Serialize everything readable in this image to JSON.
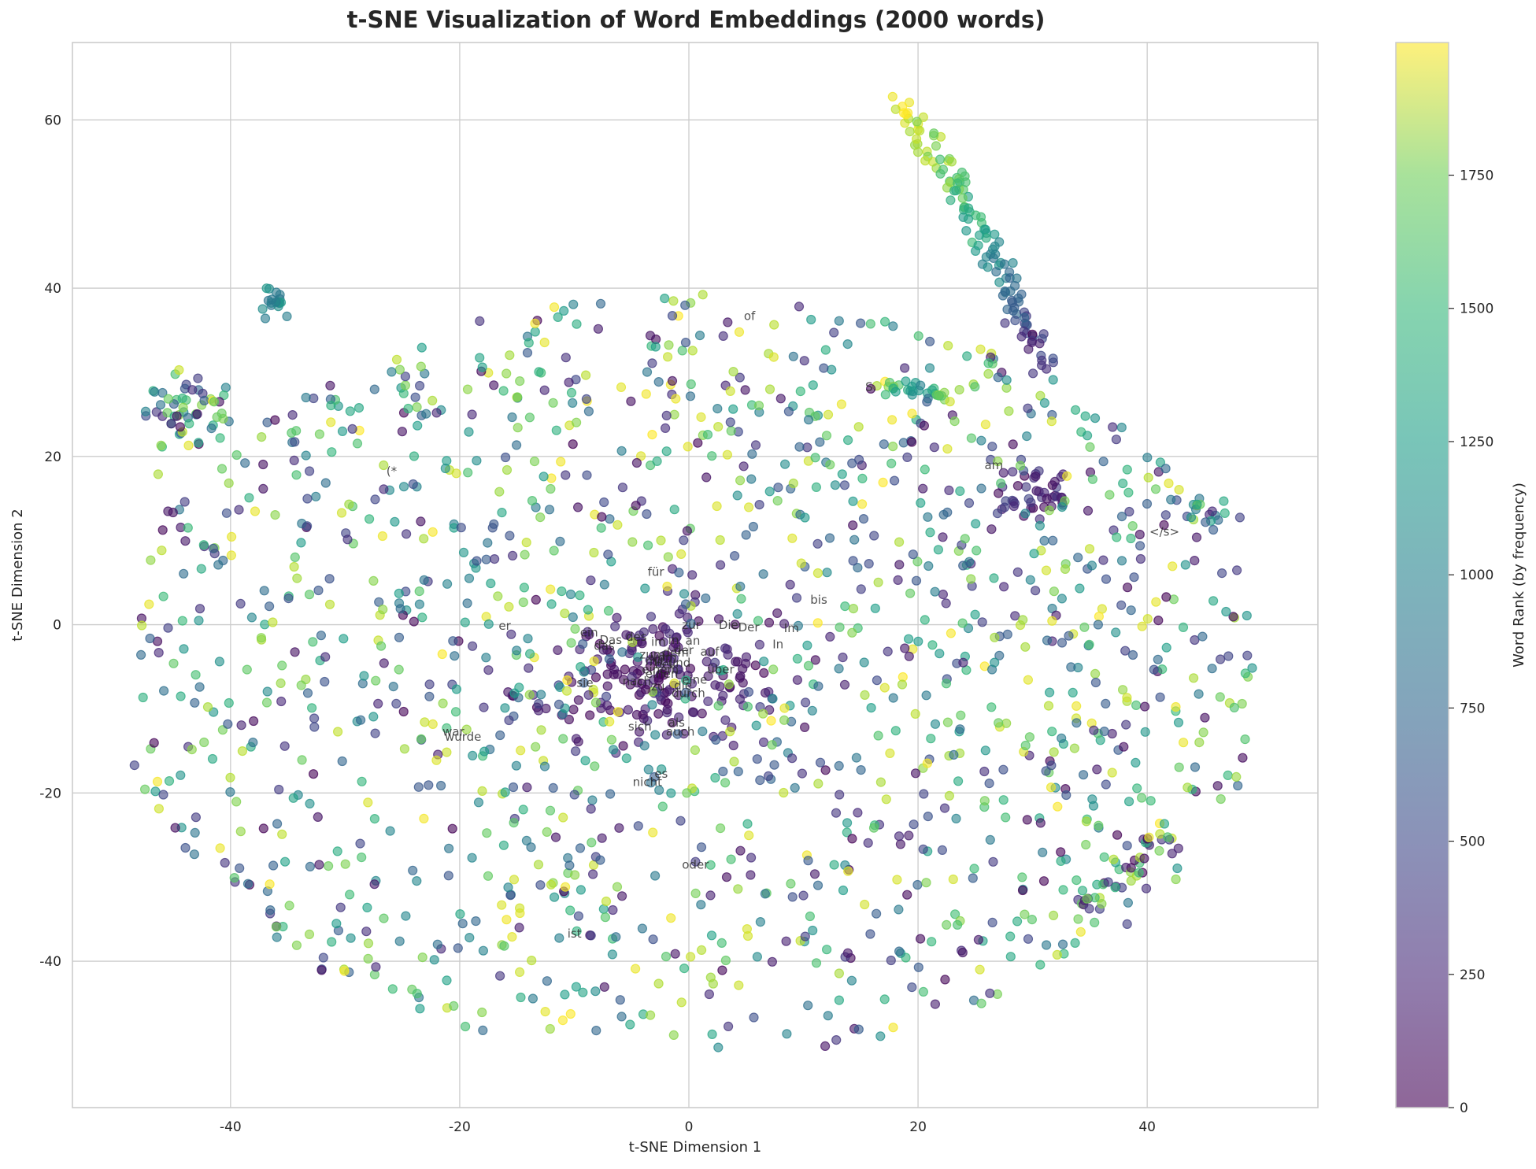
{
  "chart_data": {
    "type": "scatter",
    "title": "t-SNE Visualization of Word Embeddings (2000 words)",
    "xlabel": "t-SNE Dimension 1",
    "ylabel": "t-SNE Dimension 2",
    "xlim": [
      -53.8,
      54.9
    ],
    "ylim": [
      -57.4,
      69.2
    ],
    "xticks": [
      -40,
      -20,
      0,
      20,
      40
    ],
    "yticks": [
      -40,
      -20,
      0,
      20,
      40,
      60
    ],
    "grid": true,
    "marker_alpha": 0.6,
    "n_points": 2000,
    "colormap": "viridis",
    "colorbar": {
      "label": "Word Rank (by frequency)",
      "range": [
        0,
        1999
      ],
      "ticks": [
        0,
        250,
        500,
        750,
        1000,
        1250,
        1500,
        1750
      ]
    },
    "clusters": [
      {
        "name": "top-right arc",
        "x": [
          17,
          31
        ],
        "y": [
          30,
          63
        ],
        "rank_range": [
          300,
          1999
        ]
      },
      {
        "name": "right cluster (am)",
        "x": [
          26,
          34
        ],
        "y": [
          12,
          19
        ],
        "rank_range": [
          0,
          500
        ]
      },
      {
        "name": "center function words",
        "x": [
          -18,
          12
        ],
        "y": [
          -20,
          2
        ],
        "rank_range": [
          0,
          300
        ]
      },
      {
        "name": "left cluster",
        "x": [
          -47,
          -38
        ],
        "y": [
          19,
          30
        ],
        "rank_range": [
          400,
          1999
        ]
      },
      {
        "name": "left-top cluster",
        "x": [
          -38,
          -34
        ],
        "y": [
          37,
          40
        ],
        "rank_range": [
          700,
          1100
        ]
      },
      {
        "name": "right-lower cluster",
        "x": [
          35,
          42
        ],
        "y": [
          -34,
          -25
        ],
        "rank_range": [
          0,
          1999
        ]
      }
    ],
    "annotations": [
      {
        "text": "of",
        "x": 4.8,
        "y": 36.2
      },
      {
        "text": "S.",
        "x": 15.4,
        "y": 27.8
      },
      {
        "text": "(*",
        "x": -26.4,
        "y": 17.8
      },
      {
        "text": "am",
        "x": 25.8,
        "y": 18.5
      },
      {
        "text": "</s>",
        "x": 40.2,
        "y": 10.6
      },
      {
        "text": "für",
        "x": -3.6,
        "y": 5.8
      },
      {
        "text": "bis",
        "x": 10.6,
        "y": 2.5
      },
      {
        "text": "er",
        "x": -16.6,
        "y": -0.6
      },
      {
        "text": "ein",
        "x": -9.5,
        "y": -1.4
      },
      {
        "text": "Das",
        "x": -7.8,
        "y": -2.3
      },
      {
        "text": "das",
        "x": -8.3,
        "y": -3.0
      },
      {
        "text": "des",
        "x": -5.5,
        "y": -1.9
      },
      {
        "text": "zur",
        "x": -0.6,
        "y": -0.5
      },
      {
        "text": "Die",
        "x": 2.6,
        "y": -0.5
      },
      {
        "text": "Der",
        "x": 4.3,
        "y": -0.8
      },
      {
        "text": "Im",
        "x": 8.3,
        "y": -0.9
      },
      {
        "text": "In",
        "x": 7.3,
        "y": -2.8
      },
      {
        "text": "im",
        "x": -3.3,
        "y": -2.5
      },
      {
        "text": "in",
        "x": -1.8,
        "y": -2.3
      },
      {
        "text": "an",
        "x": -0.3,
        "y": -2.4
      },
      {
        "text": "der",
        "x": -1.3,
        "y": -3.5
      },
      {
        "text": "dem",
        "x": -2.3,
        "y": -3.8
      },
      {
        "text": "auf",
        "x": 1.0,
        "y": -3.7
      },
      {
        "text": "zum",
        "x": -4.3,
        "y": -4.0
      },
      {
        "text": "mit",
        "x": -3.8,
        "y": -4.8
      },
      {
        "text": "vom",
        "x": -3.3,
        "y": -4.4
      },
      {
        "text": "und",
        "x": -1.8,
        "y": -5.0
      },
      {
        "text": "bei",
        "x": -3.0,
        "y": -5.2
      },
      {
        "text": "einem",
        "x": -4.1,
        "y": -5.8
      },
      {
        "text": "einen",
        "x": -3.8,
        "y": -6.3
      },
      {
        "text": "über",
        "x": 1.6,
        "y": -5.8
      },
      {
        "text": "sie",
        "x": -9.8,
        "y": -7.4
      },
      {
        "text": "nach",
        "x": -5.8,
        "y": -7.2
      },
      {
        "text": "zu",
        "x": -3.3,
        "y": -7.8
      },
      {
        "text": "die",
        "x": -1.3,
        "y": -7.7
      },
      {
        "text": "eine",
        "x": -0.6,
        "y": -7.0
      },
      {
        "text": "durch",
        "x": -1.5,
        "y": -8.6
      },
      {
        "text": "war",
        "x": -21.5,
        "y": -13.2
      },
      {
        "text": "wurde",
        "x": -21.3,
        "y": -13.8
      },
      {
        "text": "sich",
        "x": -5.3,
        "y": -12.6
      },
      {
        "text": "als",
        "x": -1.8,
        "y": -12.1
      },
      {
        "text": "auch",
        "x": -2.0,
        "y": -13.2
      },
      {
        "text": "es",
        "x": -3.0,
        "y": -18.2
      },
      {
        "text": "nicht",
        "x": -4.9,
        "y": -19.2
      },
      {
        "text": "oder",
        "x": -0.6,
        "y": -29.0
      },
      {
        "text": "ist",
        "x": -10.6,
        "y": -37.2
      }
    ]
  }
}
